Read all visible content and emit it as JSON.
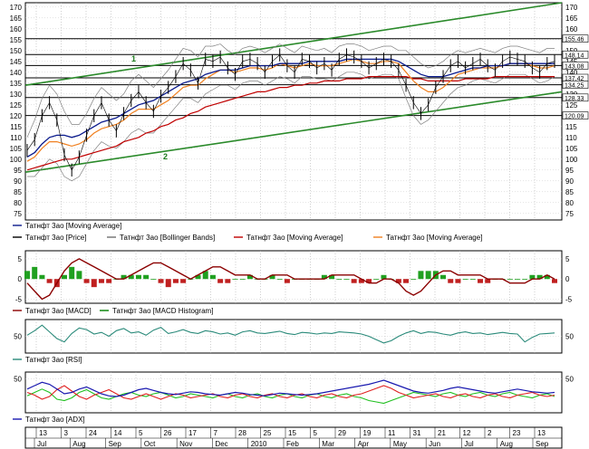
{
  "chart_data": [
    {
      "type": "line",
      "panel": "price",
      "y_ticks": [
        75,
        80,
        85,
        90,
        95,
        100,
        105,
        110,
        115,
        120,
        125,
        130,
        135,
        140,
        145,
        150,
        155,
        160,
        165,
        170
      ],
      "ylim": [
        72,
        172
      ],
      "price_tags": [
        "155.46",
        "148.14",
        "143.08",
        "137.42",
        "134.25",
        "128.33",
        "120.09"
      ],
      "price_tag_values": [
        155.46,
        148.14,
        143.08,
        137.42,
        134.25,
        128.33,
        120.09
      ],
      "annotations": [
        "1",
        "2"
      ],
      "legend": [
        {
          "name": "Татнфт 3ао [Moving Average]",
          "color": "#0a1a8c"
        },
        {
          "name": "Татнфт 3ао [Price]",
          "color": "#000000"
        },
        {
          "name": "Татнфт 3ао [Bollinger Bands]",
          "color": "#707070"
        },
        {
          "name": "Татнфт 3ао [Moving Average]",
          "color": "#c00000"
        },
        {
          "name": "Татнфт 3ао [Moving Average]",
          "color": "#f08020"
        }
      ],
      "series": [
        {
          "name": "Татнфт 3ао [Price]",
          "values": [
            104,
            109,
            120,
            126,
            118,
            102,
            95,
            101,
            111,
            120,
            126,
            118,
            113,
            121,
            127,
            131,
            126,
            122,
            129,
            133,
            138,
            144,
            141,
            135,
            146,
            145,
            147,
            142,
            139,
            145,
            146,
            144,
            140,
            145,
            148,
            143,
            140,
            146,
            145,
            142,
            144,
            141,
            146,
            148,
            147,
            145,
            142,
            144,
            146,
            145,
            141,
            134,
            126,
            121,
            125,
            133,
            138,
            143,
            145,
            142,
            144,
            146,
            143,
            141,
            145,
            147,
            146,
            145,
            142,
            140,
            144,
            145
          ]
        },
        {
          "name": "Moving Average (blue)",
          "values": [
            101,
            103,
            107,
            110,
            111,
            111,
            110,
            111,
            113,
            115,
            117,
            118,
            119,
            121,
            123,
            125,
            126,
            127,
            129,
            131,
            133,
            135,
            136,
            137,
            139,
            140,
            141,
            141,
            141,
            142,
            143,
            143,
            143,
            143,
            144,
            144,
            144,
            144,
            145,
            145,
            145,
            145,
            145,
            146,
            146,
            146,
            146,
            146,
            146,
            146,
            145,
            143,
            141,
            139,
            138,
            138,
            138,
            139,
            140,
            141,
            142,
            142,
            143,
            143,
            143,
            144,
            144,
            144,
            144,
            144,
            144,
            144
          ]
        },
        {
          "name": "Moving Average (red)",
          "values": [
            95,
            96,
            97,
            98,
            99,
            100,
            100,
            101,
            102,
            103,
            104,
            105,
            106,
            108,
            109,
            110,
            112,
            113,
            115,
            116,
            118,
            119,
            121,
            122,
            124,
            125,
            126,
            127,
            128,
            129,
            130,
            131,
            131,
            132,
            133,
            133,
            134,
            134,
            135,
            135,
            136,
            136,
            136,
            137,
            137,
            137,
            138,
            138,
            138,
            138,
            138,
            138,
            137,
            137,
            136,
            136,
            136,
            136,
            136,
            137,
            137,
            137,
            137,
            138,
            138,
            138,
            138,
            138,
            138,
            138,
            138,
            138
          ]
        },
        {
          "name": "Moving Average (orange)",
          "values": [
            99,
            101,
            105,
            108,
            108,
            107,
            106,
            107,
            109,
            112,
            114,
            115,
            116,
            118,
            121,
            123,
            123,
            123,
            125,
            127,
            130,
            133,
            134,
            134,
            137,
            139,
            141,
            141,
            140,
            141,
            142,
            142,
            141,
            142,
            144,
            143,
            142,
            143,
            144,
            143,
            143,
            143,
            144,
            145,
            146,
            145,
            144,
            144,
            145,
            145,
            144,
            140,
            136,
            133,
            131,
            131,
            133,
            136,
            139,
            140,
            141,
            142,
            142,
            142,
            143,
            144,
            144,
            144,
            143,
            142,
            142,
            143
          ]
        },
        {
          "name": "Bollinger upper",
          "values": [
            110,
            118,
            128,
            134,
            130,
            122,
            116,
            116,
            121,
            128,
            133,
            130,
            127,
            130,
            136,
            139,
            136,
            133,
            137,
            141,
            146,
            151,
            150,
            147,
            152,
            152,
            153,
            150,
            148,
            151,
            152,
            151,
            149,
            151,
            153,
            151,
            149,
            152,
            151,
            150,
            151,
            149,
            152,
            153,
            153,
            152,
            150,
            151,
            152,
            152,
            150,
            150,
            147,
            144,
            142,
            143,
            145,
            148,
            150,
            149,
            150,
            151,
            150,
            149,
            151,
            152,
            152,
            151,
            150,
            149,
            151,
            151
          ]
        },
        {
          "name": "Bollinger lower",
          "values": [
            92,
            92,
            96,
            100,
            98,
            92,
            90,
            92,
            98,
            104,
            108,
            106,
            105,
            108,
            112,
            114,
            112,
            112,
            116,
            120,
            124,
            128,
            128,
            126,
            130,
            132,
            134,
            134,
            132,
            135,
            136,
            136,
            134,
            136,
            138,
            137,
            135,
            138,
            138,
            137,
            137,
            136,
            138,
            140,
            140,
            139,
            137,
            138,
            139,
            139,
            137,
            128,
            120,
            116,
            118,
            122,
            126,
            130,
            133,
            134,
            136,
            137,
            136,
            135,
            137,
            139,
            139,
            139,
            137,
            135,
            136,
            138
          ]
        }
      ]
    },
    {
      "type": "bar",
      "panel": "macd",
      "y_ticks": [
        -5,
        0,
        5
      ],
      "ylim": [
        -6,
        7
      ],
      "legend": [
        {
          "name": "Татнфт 3ао [MACD]",
          "color": "#8b0000"
        },
        {
          "name": "Татнфт 3ао [MACD Histogram]",
          "color": "#008000"
        }
      ],
      "series": [
        {
          "name": "MACD",
          "values": [
            -1,
            -3,
            -5,
            -4,
            -1,
            2,
            4,
            5,
            4,
            3,
            2,
            1,
            0,
            0,
            1,
            2,
            3,
            4,
            4,
            3,
            2,
            1,
            0,
            1,
            2,
            3,
            3,
            2,
            1,
            1,
            1,
            0,
            0,
            1,
            1,
            1,
            0,
            0,
            0,
            0,
            0,
            1,
            1,
            1,
            1,
            0,
            -1,
            -1,
            0,
            0,
            -1,
            -3,
            -4,
            -3,
            -1,
            1,
            2,
            2,
            1,
            1,
            1,
            1,
            0,
            0,
            0,
            -1,
            -1,
            -1,
            0,
            0,
            1,
            0
          ]
        },
        {
          "name": "MACD Histogram",
          "values": [
            2,
            3,
            1,
            -1,
            -2,
            1,
            3,
            2,
            -1,
            -2,
            -1,
            -1,
            0,
            1,
            1,
            1,
            1,
            0,
            -1,
            -2,
            -1,
            -1,
            0,
            1,
            2,
            1,
            -1,
            -1,
            0,
            0,
            1,
            0,
            0,
            1,
            0,
            -1,
            0,
            0,
            0,
            0,
            1,
            1,
            0,
            0,
            -1,
            -1,
            -1,
            0,
            1,
            0,
            -1,
            -1,
            0,
            2,
            2,
            2,
            1,
            -1,
            -1,
            0,
            0,
            -1,
            -1,
            0,
            0,
            0,
            0,
            0,
            1,
            1,
            1,
            -1
          ]
        }
      ]
    },
    {
      "type": "line",
      "panel": "rsi",
      "y_ticks": [
        50
      ],
      "ylim": [
        20,
        80
      ],
      "legend": [
        {
          "name": "Татнфт 3ао [RSI]",
          "color": "#2a8a7a"
        }
      ],
      "series": [
        {
          "name": "RSI",
          "values": [
            52,
            60,
            70,
            58,
            46,
            40,
            55,
            65,
            62,
            54,
            57,
            50,
            60,
            64,
            56,
            58,
            52,
            61,
            66,
            55,
            58,
            62,
            57,
            55,
            60,
            58,
            54,
            56,
            52,
            58,
            60,
            56,
            55,
            57,
            59,
            55,
            53,
            57,
            56,
            54,
            56,
            55,
            58,
            57,
            56,
            54,
            50,
            44,
            38,
            42,
            50,
            56,
            60,
            55,
            58,
            57,
            54,
            52,
            56,
            58,
            55,
            56,
            53,
            55,
            57,
            55,
            54,
            40,
            48,
            54,
            55,
            56
          ]
        }
      ]
    },
    {
      "type": "line",
      "panel": "adx",
      "y_ticks": [
        50
      ],
      "ylim": [
        0,
        60
      ],
      "legend": [
        {
          "name": "Татнфт 3ао [ADX]",
          "color": "#1a1ab0"
        }
      ],
      "series": [
        {
          "name": "ADX",
          "values": [
            35,
            40,
            45,
            42,
            35,
            28,
            30,
            35,
            38,
            33,
            28,
            25,
            24,
            26,
            30,
            34,
            36,
            33,
            30,
            28,
            27,
            29,
            31,
            30,
            28,
            27,
            26,
            28,
            30,
            29,
            27,
            26,
            25,
            27,
            29,
            28,
            27,
            26,
            27,
            28,
            30,
            32,
            34,
            36,
            38,
            40,
            42,
            45,
            48,
            44,
            40,
            36,
            32,
            30,
            29,
            31,
            33,
            36,
            38,
            36,
            34,
            32,
            30,
            29,
            31,
            33,
            35,
            33,
            31,
            30,
            29,
            30
          ]
        },
        {
          "name": "+DI",
          "values": [
            25,
            30,
            35,
            30,
            20,
            18,
            22,
            30,
            34,
            28,
            22,
            20,
            24,
            28,
            30,
            26,
            24,
            28,
            30,
            26,
            22,
            24,
            28,
            26,
            24,
            22,
            26,
            28,
            24,
            22,
            26,
            28,
            24,
            22,
            26,
            28,
            24,
            22,
            26,
            28,
            24,
            22,
            26,
            28,
            24,
            22,
            18,
            16,
            14,
            18,
            22,
            26,
            30,
            28,
            26,
            24,
            28,
            30,
            26,
            24,
            28,
            30,
            26,
            24,
            28,
            30,
            26,
            24,
            22,
            26,
            28,
            24
          ]
        },
        {
          "name": "-DI",
          "values": [
            30,
            26,
            20,
            24,
            34,
            40,
            32,
            24,
            20,
            26,
            30,
            34,
            28,
            22,
            20,
            24,
            28,
            24,
            20,
            24,
            28,
            26,
            22,
            24,
            26,
            28,
            24,
            22,
            26,
            28,
            24,
            22,
            26,
            28,
            24,
            22,
            26,
            28,
            24,
            22,
            26,
            28,
            24,
            22,
            26,
            28,
            32,
            36,
            40,
            36,
            30,
            26,
            22,
            24,
            26,
            28,
            24,
            22,
            26,
            28,
            24,
            22,
            26,
            28,
            24,
            22,
            26,
            28,
            30,
            26,
            24,
            26
          ]
        }
      ]
    }
  ],
  "x_axis": {
    "day_labels": [
      "13",
      "3",
      "24",
      "14",
      "5",
      "26",
      "17",
      "7",
      "28",
      "25",
      "15",
      "5",
      "29",
      "19",
      "11",
      "31",
      "21",
      "12",
      "2",
      "23",
      "13"
    ],
    "month_labels": [
      "Jul",
      "Aug",
      "Sep",
      "Oct",
      "Nov",
      "Dec",
      "2010",
      "Feb",
      "Mar",
      "Apr",
      "May",
      "Jun",
      "Jul",
      "Aug",
      "Sep"
    ]
  }
}
